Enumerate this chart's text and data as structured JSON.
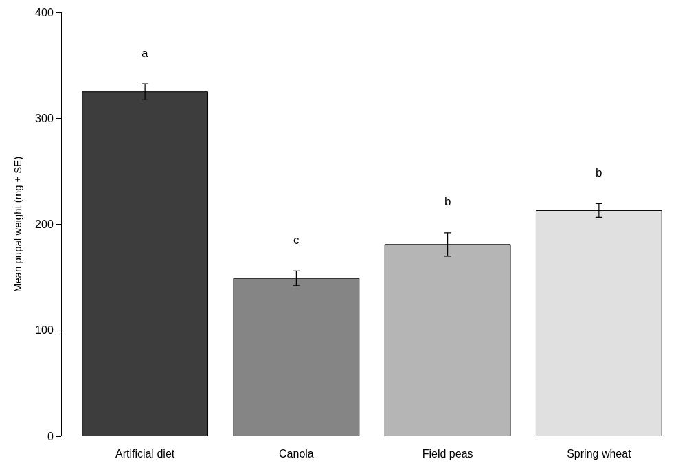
{
  "chart_data": {
    "type": "bar",
    "ylabel": "Mean pupal weight (mg ± SE)",
    "categories": [
      "Artificial diet",
      "Canola",
      "Field peas",
      "Spring wheat"
    ],
    "values": [
      325,
      149,
      181,
      213
    ],
    "colors": [
      "#3d3d3d",
      "#858585",
      "#b5b5b5",
      "#e0e0e0"
    ],
    "errors": [
      7.5,
      7,
      11,
      6.5
    ],
    "ylim": [
      0,
      400
    ],
    "yticks": [
      0,
      100,
      200,
      300,
      400
    ],
    "annotations": [
      "a",
      "c",
      "b",
      "b"
    ]
  }
}
